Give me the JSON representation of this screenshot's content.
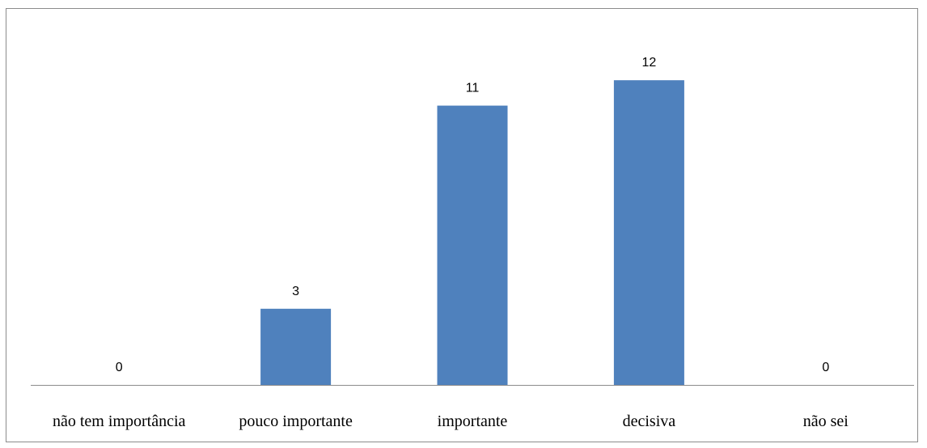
{
  "chart_data": {
    "type": "bar",
    "categories": [
      "não tem importância",
      "pouco importante",
      "importante",
      "decisiva",
      "não sei"
    ],
    "values": [
      0,
      3,
      11,
      12,
      0
    ],
    "data_labels": [
      "0",
      "3",
      "11",
      "12",
      "0"
    ],
    "title": "",
    "xlabel": "",
    "ylabel": "",
    "ylim": [
      0,
      14
    ],
    "grid": false,
    "legend": "none",
    "bar_color": "#4f81bd"
  }
}
